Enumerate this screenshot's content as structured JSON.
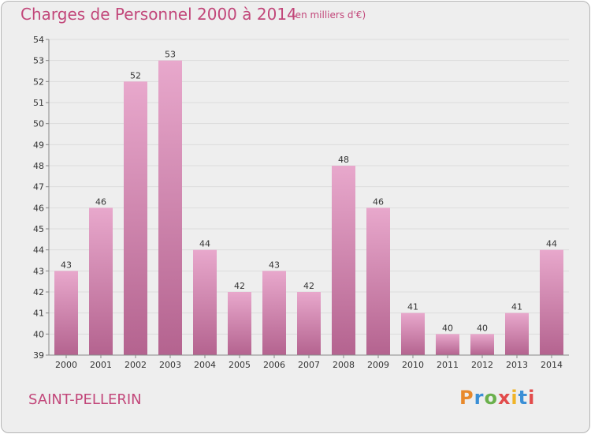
{
  "title": "Charges de Personnel 2000 à 2014",
  "subtitle": "(en milliers d'€)",
  "commune": "SAINT-PELLERIN",
  "logo": {
    "letters": [
      "P",
      "r",
      "o",
      "x",
      "i",
      "t",
      "i"
    ],
    "colors": [
      "#e8892c",
      "#3a8fd6",
      "#6ab04c",
      "#e24b4b",
      "#f0b428",
      "#3a8fd6",
      "#e24b4b"
    ]
  },
  "colors": {
    "bar_top": "#e8a8cc",
    "bar_bottom": "#b4638f",
    "grid": "#dcdcdc",
    "text": "#333333",
    "accent": "#c2477a"
  },
  "chart_data": {
    "type": "bar",
    "categories": [
      "2000",
      "2001",
      "2002",
      "2003",
      "2004",
      "2005",
      "2006",
      "2007",
      "2008",
      "2009",
      "2010",
      "2011",
      "2012",
      "2013",
      "2014"
    ],
    "values": [
      43,
      46,
      52,
      53,
      44,
      42,
      43,
      42,
      48,
      46,
      41,
      40,
      40,
      41,
      44
    ],
    "yticks": [
      39,
      40,
      41,
      42,
      43,
      44,
      45,
      46,
      47,
      48,
      49,
      50,
      51,
      52,
      53,
      54
    ],
    "ylim": [
      39,
      54
    ],
    "grid": true,
    "data_labels": true
  }
}
